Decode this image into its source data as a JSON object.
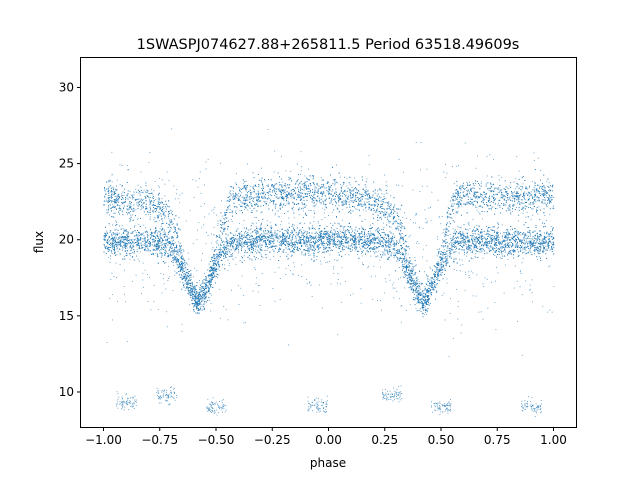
{
  "chart_data": {
    "type": "scatter",
    "title": "1SWASPJ074627.88+265811.5 Period 63518.49609s",
    "xlabel": "phase",
    "ylabel": "flux",
    "xlim": [
      -1.1,
      1.1
    ],
    "ylim": [
      7.7,
      32
    ],
    "xticks": [
      "−1.00",
      "−0.75",
      "−0.50",
      "−0.25",
      "0.00",
      "0.25",
      "0.50",
      "0.75",
      "1.00"
    ],
    "xtick_values": [
      -1,
      -0.75,
      -0.5,
      -0.25,
      0,
      0.25,
      0.5,
      0.75,
      1
    ],
    "yticks": [
      "10",
      "15",
      "20",
      "25",
      "30"
    ],
    "ytick_values": [
      10,
      15,
      20,
      25,
      30
    ],
    "grid": false,
    "marker_color": "#1f77b4",
    "series": [
      {
        "phase": [
          -1.0,
          -0.9,
          -0.8,
          -0.72,
          -0.68,
          -0.64,
          -0.6,
          -0.58,
          -0.56,
          -0.52,
          -0.48,
          -0.44,
          -0.4,
          -0.3,
          -0.2,
          -0.1,
          0.0,
          0.1,
          0.2,
          0.28,
          0.32,
          0.36,
          0.4,
          0.42,
          0.44,
          0.48,
          0.52,
          0.56,
          0.6,
          0.7,
          0.8,
          0.9,
          1.0
        ],
        "flux_lower_band": [
          19.9,
          19.9,
          19.9,
          19.8,
          19.0,
          17.6,
          16.3,
          16.0,
          16.3,
          17.6,
          19.0,
          19.8,
          19.9,
          20.0,
          20.0,
          20.0,
          20.0,
          20.0,
          19.9,
          19.8,
          19.0,
          17.6,
          16.3,
          16.0,
          16.3,
          17.6,
          19.0,
          19.8,
          19.9,
          19.9,
          19.9,
          19.9,
          19.9
        ],
        "flux_upper_band": [
          22.8,
          22.6,
          22.4,
          22.0,
          20.5,
          18.0,
          16.5,
          16.0,
          16.5,
          18.0,
          20.5,
          22.6,
          22.8,
          23.0,
          23.0,
          23.0,
          23.0,
          22.8,
          22.5,
          22.0,
          20.5,
          18.0,
          16.5,
          16.0,
          16.5,
          18.0,
          20.5,
          22.6,
          22.8,
          22.8,
          22.8,
          22.9,
          23.0
        ]
      }
    ],
    "outlier_clusters": [
      {
        "phase": -0.72,
        "flux": 9.8
      },
      {
        "phase": 0.28,
        "flux": 9.8
      },
      {
        "phase": -0.5,
        "flux": 9.1
      },
      {
        "phase": -0.05,
        "flux": 9.1
      },
      {
        "phase": 0.5,
        "flux": 9.1
      },
      {
        "phase": 0.9,
        "flux": 9.1
      },
      {
        "phase": -0.9,
        "flux": 9.3
      }
    ]
  }
}
